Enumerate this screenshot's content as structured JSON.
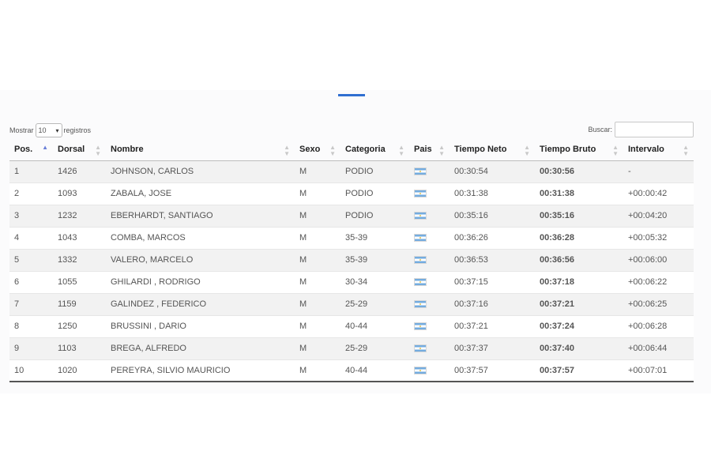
{
  "controls": {
    "length_prefix": "Mostrar",
    "length_value": "10",
    "length_suffix": "registros",
    "search_label": "Buscar:",
    "search_value": ""
  },
  "colors": {
    "tab_indicator": "#2f6fd1",
    "sort_active": "#6a7fd8",
    "row_stripe": "#f2f2f2"
  },
  "columns": [
    "Pos.",
    "Dorsal",
    "Nombre",
    "Sexo",
    "Categoria",
    "Pais",
    "Tiempo Neto",
    "Tiempo Bruto",
    "Intervalo"
  ],
  "rows": [
    {
      "pos": "1",
      "dorsal": "1426",
      "nombre": "JOHNSON, CARLOS",
      "sexo": "M",
      "categoria": "PODIO",
      "pais": "argentina-flag-icon",
      "neto": "00:30:54",
      "bruto": "00:30:56",
      "intervalo": "-"
    },
    {
      "pos": "2",
      "dorsal": "1093",
      "nombre": "ZABALA, JOSE",
      "sexo": "M",
      "categoria": "PODIO",
      "pais": "argentina-flag-icon",
      "neto": "00:31:38",
      "bruto": "00:31:38",
      "intervalo": "+00:00:42"
    },
    {
      "pos": "3",
      "dorsal": "1232",
      "nombre": "EBERHARDT, SANTIAGO",
      "sexo": "M",
      "categoria": "PODIO",
      "pais": "argentina-flag-icon",
      "neto": "00:35:16",
      "bruto": "00:35:16",
      "intervalo": "+00:04:20"
    },
    {
      "pos": "4",
      "dorsal": "1043",
      "nombre": "COMBA, MARCOS",
      "sexo": "M",
      "categoria": "35-39",
      "pais": "argentina-flag-icon",
      "neto": "00:36:26",
      "bruto": "00:36:28",
      "intervalo": "+00:05:32"
    },
    {
      "pos": "5",
      "dorsal": "1332",
      "nombre": "VALERO, MARCELO",
      "sexo": "M",
      "categoria": "35-39",
      "pais": "argentina-flag-icon",
      "neto": "00:36:53",
      "bruto": "00:36:56",
      "intervalo": "+00:06:00"
    },
    {
      "pos": "6",
      "dorsal": "1055",
      "nombre": "GHILARDI , RODRIGO",
      "sexo": "M",
      "categoria": "30-34",
      "pais": "argentina-flag-icon",
      "neto": "00:37:15",
      "bruto": "00:37:18",
      "intervalo": "+00:06:22"
    },
    {
      "pos": "7",
      "dorsal": "1159",
      "nombre": "GALINDEZ , FEDERICO",
      "sexo": "M",
      "categoria": "25-29",
      "pais": "argentina-flag-icon",
      "neto": "00:37:16",
      "bruto": "00:37:21",
      "intervalo": "+00:06:25"
    },
    {
      "pos": "8",
      "dorsal": "1250",
      "nombre": "BRUSSINI , DARIO",
      "sexo": "M",
      "categoria": "40-44",
      "pais": "argentina-flag-icon",
      "neto": "00:37:21",
      "bruto": "00:37:24",
      "intervalo": "+00:06:28"
    },
    {
      "pos": "9",
      "dorsal": "1103",
      "nombre": "BREGA, ALFREDO",
      "sexo": "M",
      "categoria": "25-29",
      "pais": "argentina-flag-icon",
      "neto": "00:37:37",
      "bruto": "00:37:40",
      "intervalo": "+00:06:44"
    },
    {
      "pos": "10",
      "dorsal": "1020",
      "nombre": "PEREYRA, SILVIO MAURICIO",
      "sexo": "M",
      "categoria": "40-44",
      "pais": "argentina-flag-icon",
      "neto": "00:37:57",
      "bruto": "00:37:57",
      "intervalo": "+00:07:01"
    }
  ]
}
